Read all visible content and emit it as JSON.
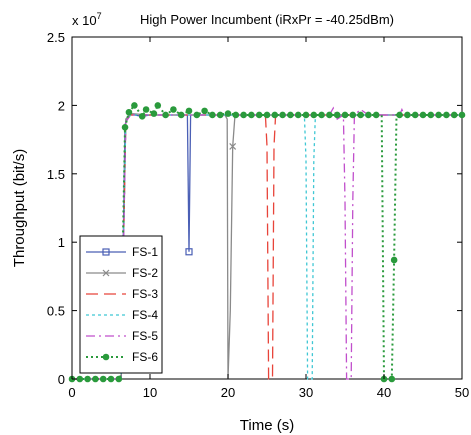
{
  "chart_data": {
    "type": "line",
    "title": "High Power Incumbent (iRxPr = -40.25dBm)",
    "xlabel": "Time (s)",
    "ylabel": "Throughput (bit/s)",
    "exponent_label": "x 10",
    "exponent_power": "7",
    "xlim": [
      0,
      50
    ],
    "ylim": [
      0,
      2.5
    ],
    "y_scale_multiplier": 10000000,
    "xticks": [
      0,
      10,
      20,
      30,
      40,
      50
    ],
    "yticks": [
      0,
      0.5,
      1,
      1.5,
      2,
      2.5
    ],
    "grid": false,
    "legend_position": "lower-left",
    "series": [
      {
        "name": "FS-1",
        "color": "#4a5fb5",
        "dash": "solid",
        "marker": "square",
        "points": [
          [
            0,
            0
          ],
          [
            6.3,
            0
          ],
          [
            6.8,
            1.86
          ],
          [
            7.3,
            1.93
          ],
          [
            8,
            1.93
          ],
          [
            9,
            1.92
          ],
          [
            10,
            1.93
          ],
          [
            12,
            1.93
          ],
          [
            14,
            1.93
          ],
          [
            14.8,
            1.93
          ],
          [
            15.0,
            0.93
          ],
          [
            15.2,
            1.93
          ],
          [
            16,
            1.93
          ],
          [
            20,
            1.93
          ],
          [
            25,
            1.93
          ],
          [
            30,
            1.93
          ],
          [
            35,
            1.93
          ],
          [
            40,
            1.93
          ],
          [
            45,
            1.93
          ],
          [
            50,
            1.93
          ]
        ],
        "marker_points": [
          [
            15.0,
            0.93
          ]
        ]
      },
      {
        "name": "FS-2",
        "color": "#8a8a8a",
        "dash": "solid",
        "marker": "x",
        "points": [
          [
            0,
            0
          ],
          [
            6.3,
            0
          ],
          [
            6.9,
            1.9
          ],
          [
            7.5,
            1.94
          ],
          [
            10,
            1.93
          ],
          [
            15,
            1.93
          ],
          [
            19.6,
            1.93
          ],
          [
            19.9,
            1.9
          ],
          [
            20.0,
            0
          ],
          [
            20.3,
            0.5
          ],
          [
            20.6,
            1.7
          ],
          [
            20.9,
            1.93
          ],
          [
            25,
            1.93
          ],
          [
            30,
            1.93
          ],
          [
            35,
            1.93
          ],
          [
            40,
            1.93
          ],
          [
            45,
            1.93
          ],
          [
            50,
            1.93
          ]
        ],
        "marker_points": [
          [
            20.6,
            1.7
          ]
        ]
      },
      {
        "name": "FS-3",
        "color": "#e8443a",
        "dash": "12,6",
        "marker": "",
        "points": [
          [
            0,
            0
          ],
          [
            6.3,
            0
          ],
          [
            6.9,
            1.88
          ],
          [
            7.5,
            1.93
          ],
          [
            10,
            1.93
          ],
          [
            15,
            1.93
          ],
          [
            20,
            1.93
          ],
          [
            24.8,
            1.93
          ],
          [
            25.0,
            1.7
          ],
          [
            25.2,
            0
          ],
          [
            25.7,
            0
          ],
          [
            25.9,
            1.7
          ],
          [
            26.1,
            1.93
          ],
          [
            30,
            1.93
          ],
          [
            35,
            1.93
          ],
          [
            40,
            1.93
          ],
          [
            45,
            1.93
          ],
          [
            50,
            1.93
          ]
        ],
        "marker_points": []
      },
      {
        "name": "FS-4",
        "color": "#3fc7d4",
        "dash": "3,3",
        "marker": "",
        "points": [
          [
            0,
            0
          ],
          [
            6.3,
            0
          ],
          [
            6.9,
            1.88
          ],
          [
            7.5,
            1.93
          ],
          [
            10,
            1.93
          ],
          [
            15,
            1.93
          ],
          [
            20,
            1.93
          ],
          [
            25,
            1.93
          ],
          [
            29.8,
            1.93
          ],
          [
            30.0,
            1.6
          ],
          [
            30.2,
            0
          ],
          [
            30.8,
            0
          ],
          [
            31.0,
            1.6
          ],
          [
            31.2,
            1.93
          ],
          [
            35,
            1.93
          ],
          [
            40,
            1.93
          ],
          [
            45,
            1.93
          ],
          [
            50,
            1.93
          ]
        ],
        "marker_points": []
      },
      {
        "name": "FS-5",
        "color": "#c14fcc",
        "dash": "9,4,2,4",
        "marker": "",
        "points": [
          [
            0,
            0
          ],
          [
            6.3,
            0
          ],
          [
            6.9,
            1.88
          ],
          [
            7.5,
            1.93
          ],
          [
            10,
            1.93
          ],
          [
            20,
            1.93
          ],
          [
            30,
            1.93
          ],
          [
            33,
            1.93
          ],
          [
            33.5,
            1.98
          ],
          [
            34,
            1.9
          ],
          [
            34.8,
            1.93
          ],
          [
            35.0,
            1.3
          ],
          [
            35.2,
            0
          ],
          [
            35.8,
            0
          ],
          [
            36.0,
            1.3
          ],
          [
            36.2,
            1.93
          ],
          [
            37,
            1.97
          ],
          [
            38,
            1.93
          ],
          [
            40,
            1.93
          ],
          [
            42,
            1.93
          ],
          [
            42.3,
            1.97
          ],
          [
            42.6,
            1.93
          ],
          [
            45,
            1.93
          ],
          [
            50,
            1.93
          ]
        ],
        "marker_points": []
      },
      {
        "name": "FS-6",
        "color": "#2a9a3c",
        "dash": "2,3",
        "marker": "circle",
        "points": [
          [
            0,
            0
          ],
          [
            6.2,
            0
          ],
          [
            6.8,
            1.84
          ],
          [
            7.3,
            1.95
          ],
          [
            8.0,
            2.0
          ],
          [
            9.0,
            1.92
          ],
          [
            9.5,
            1.97
          ],
          [
            10.5,
            1.94
          ],
          [
            11,
            2.0
          ],
          [
            12,
            1.93
          ],
          [
            13,
            1.97
          ],
          [
            14,
            1.93
          ],
          [
            15,
            1.96
          ],
          [
            16,
            1.93
          ],
          [
            17,
            1.96
          ],
          [
            18,
            1.93
          ],
          [
            20,
            1.94
          ],
          [
            22,
            1.93
          ],
          [
            25,
            1.93
          ],
          [
            30,
            1.93
          ],
          [
            35,
            1.93
          ],
          [
            38,
            1.93
          ],
          [
            39.7,
            1.93
          ],
          [
            40.0,
            0
          ],
          [
            41.0,
            0
          ],
          [
            41.3,
            0.87
          ],
          [
            41.6,
            1.93
          ],
          [
            45,
            1.93
          ],
          [
            50,
            1.93
          ]
        ],
        "marker_points": [
          [
            0,
            0
          ],
          [
            1,
            0
          ],
          [
            2,
            0
          ],
          [
            3,
            0
          ],
          [
            4,
            0
          ],
          [
            5,
            0
          ],
          [
            6,
            0
          ],
          [
            6.8,
            1.84
          ],
          [
            7.3,
            1.95
          ],
          [
            8.0,
            2.0
          ],
          [
            9.0,
            1.92
          ],
          [
            9.5,
            1.97
          ],
          [
            10.5,
            1.94
          ],
          [
            11,
            2.0
          ],
          [
            12,
            1.93
          ],
          [
            13,
            1.97
          ],
          [
            14,
            1.93
          ],
          [
            15,
            1.96
          ],
          [
            16,
            1.93
          ],
          [
            17,
            1.96
          ],
          [
            18,
            1.93
          ],
          [
            19,
            1.93
          ],
          [
            20,
            1.94
          ],
          [
            21,
            1.93
          ],
          [
            22,
            1.93
          ],
          [
            23,
            1.93
          ],
          [
            24,
            1.93
          ],
          [
            25,
            1.93
          ],
          [
            26,
            1.93
          ],
          [
            27,
            1.93
          ],
          [
            28,
            1.93
          ],
          [
            29,
            1.93
          ],
          [
            30,
            1.93
          ],
          [
            31,
            1.93
          ],
          [
            32,
            1.93
          ],
          [
            33,
            1.93
          ],
          [
            34,
            1.93
          ],
          [
            35,
            1.93
          ],
          [
            36,
            1.93
          ],
          [
            37,
            1.93
          ],
          [
            38,
            1.93
          ],
          [
            39,
            1.93
          ],
          [
            40,
            0
          ],
          [
            41,
            0
          ],
          [
            41.3,
            0.87
          ],
          [
            42,
            1.93
          ],
          [
            43,
            1.93
          ],
          [
            44,
            1.93
          ],
          [
            45,
            1.93
          ],
          [
            46,
            1.93
          ],
          [
            47,
            1.93
          ],
          [
            48,
            1.93
          ],
          [
            49,
            1.93
          ],
          [
            50,
            1.93
          ]
        ]
      }
    ]
  }
}
